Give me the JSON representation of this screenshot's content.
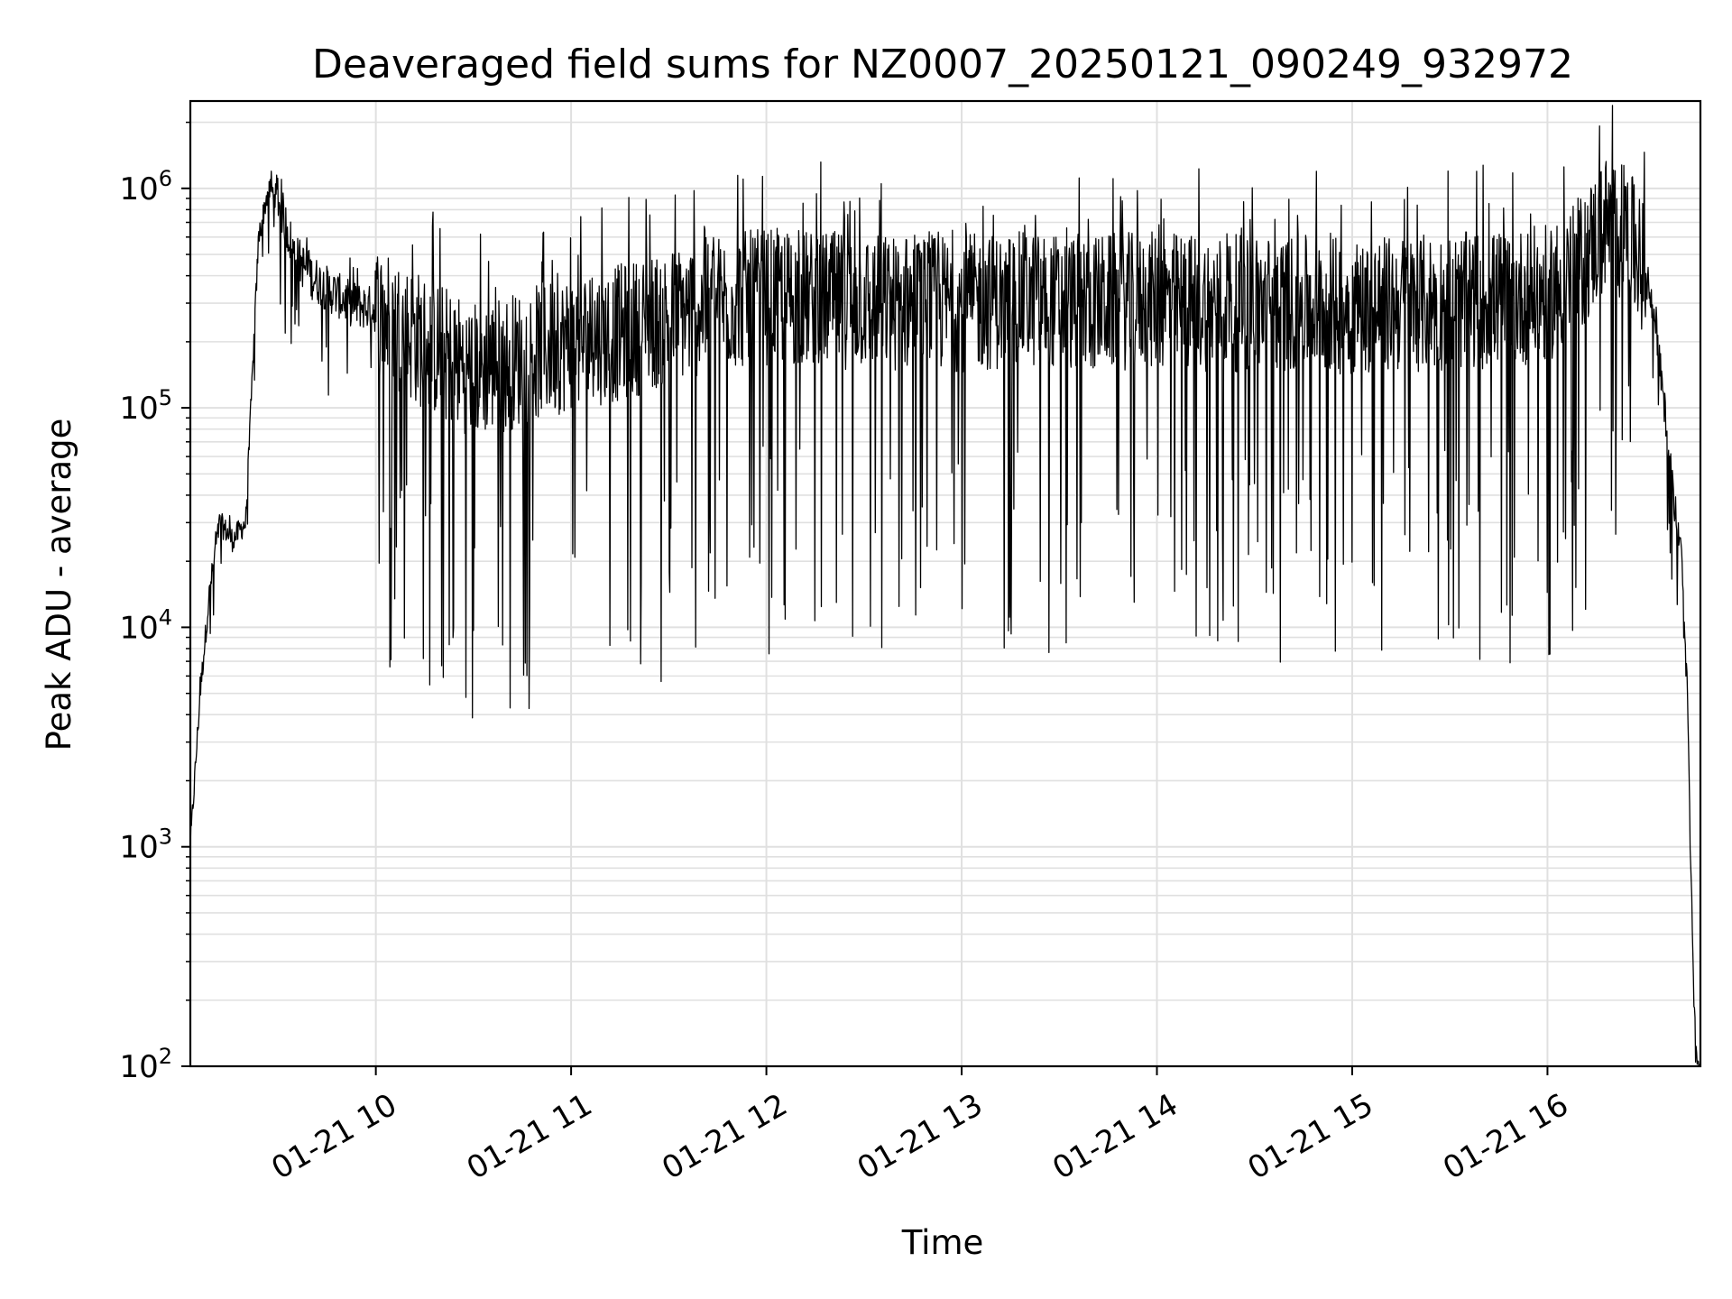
{
  "chart_data": {
    "type": "line",
    "title": "Deaveraged field sums for NZ0007_20250121_090249_932972",
    "xlabel": "Time",
    "ylabel": "Peak ADU - average",
    "yscale": "log",
    "ylim": [
      100,
      2500000
    ],
    "xlim": [
      "2025-01-21 09:03",
      "2025-01-21 16:47"
    ],
    "grid": true,
    "legend": "none",
    "line_color": "#000000",
    "grid_color": "#e0e0e0",
    "x_ticks": [
      {
        "label": "01-21 10",
        "value": "2025-01-21 10:00"
      },
      {
        "label": "01-21 11",
        "value": "2025-01-21 11:00"
      },
      {
        "label": "01-21 12",
        "value": "2025-01-21 12:00"
      },
      {
        "label": "01-21 13",
        "value": "2025-01-21 13:00"
      },
      {
        "label": "01-21 14",
        "value": "2025-01-21 14:00"
      },
      {
        "label": "01-21 15",
        "value": "2025-01-21 15:00"
      },
      {
        "label": "01-21 16",
        "value": "2025-01-21 16:00"
      }
    ],
    "y_ticks": [
      {
        "base": "10",
        "exp": "2",
        "value": 100
      },
      {
        "base": "10",
        "exp": "3",
        "value": 1000
      },
      {
        "base": "10",
        "exp": "4",
        "value": 10000
      },
      {
        "base": "10",
        "exp": "5",
        "value": 100000
      },
      {
        "base": "10",
        "exp": "6",
        "value": 1000000
      }
    ],
    "series": [
      {
        "x": [
          "2025-01-21 09:03",
          "2025-01-21 09:06",
          "2025-01-21 09:09",
          "2025-01-21 09:12",
          "2025-01-21 09:16",
          "2025-01-21 09:20",
          "2025-01-21 09:24",
          "2025-01-21 09:27",
          "2025-01-21 09:30",
          "2025-01-21 09:35",
          "2025-01-21 09:40",
          "2025-01-21 09:45",
          "2025-01-21 09:52",
          "2025-01-21 10:00",
          "2025-01-21 10:10",
          "2025-01-21 10:20",
          "2025-01-21 10:30",
          "2025-01-21 10:40",
          "2025-01-21 10:50",
          "2025-01-21 11:00",
          "2025-01-21 11:15",
          "2025-01-21 11:30",
          "2025-01-21 11:45",
          "2025-01-21 12:00",
          "2025-01-21 12:20",
          "2025-01-21 12:40",
          "2025-01-21 13:00",
          "2025-01-21 13:20",
          "2025-01-21 13:40",
          "2025-01-21 14:00",
          "2025-01-21 14:20",
          "2025-01-21 14:40",
          "2025-01-21 15:00",
          "2025-01-21 15:20",
          "2025-01-21 15:40",
          "2025-01-21 16:00",
          "2025-01-21 16:10",
          "2025-01-21 16:18",
          "2025-01-21 16:25",
          "2025-01-21 16:30",
          "2025-01-21 16:33",
          "2025-01-21 16:36",
          "2025-01-21 16:39",
          "2025-01-21 16:41",
          "2025-01-21 16:43",
          "2025-01-21 16:45",
          "2025-01-21 16:46"
        ],
        "y": [
          1000,
          5000,
          15000,
          30000,
          25000,
          30000,
          600000,
          1000000,
          900000,
          500000,
          400000,
          350000,
          300000,
          280000,
          220000,
          180000,
          150000,
          160000,
          180000,
          200000,
          220000,
          260000,
          300000,
          320000,
          310000,
          300000,
          300000,
          310000,
          300000,
          310000,
          300000,
          300000,
          290000,
          300000,
          310000,
          330000,
          450000,
          700000,
          600000,
          400000,
          250000,
          100000,
          35000,
          25000,
          5000,
          200,
          100
        ]
      }
    ]
  }
}
